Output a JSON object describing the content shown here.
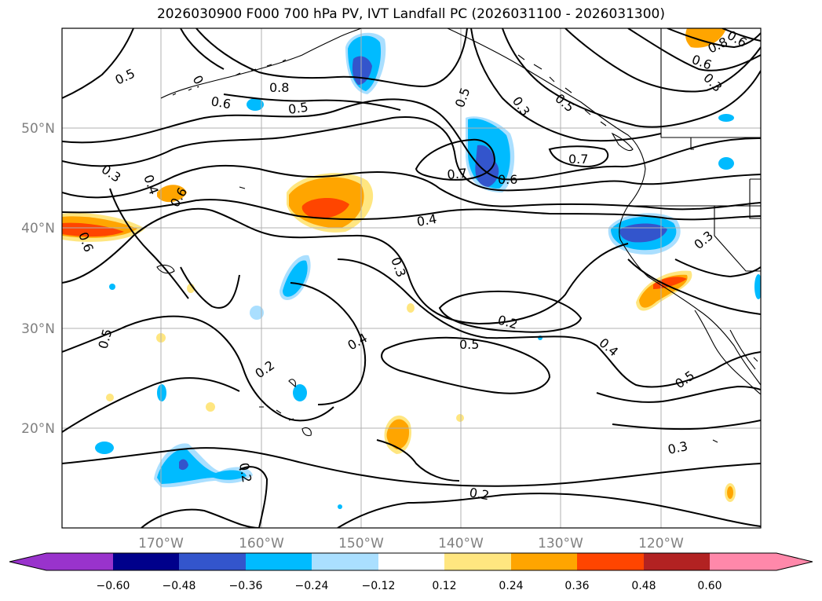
{
  "title": "2026030900 F000 700 hPa PV, IVT Landfall PC (2026031100 - 2026031300)",
  "latitude_labels": [
    "50°N",
    "40°N",
    "30°N",
    "20°N"
  ],
  "longitude_labels": [
    "170°W",
    "160°W",
    "150°W",
    "140°W",
    "130°W",
    "120°W"
  ],
  "contour_labels": [
    "0.5",
    "0.",
    "0.8",
    "0.6",
    "0.5",
    "0.5",
    "0.3",
    "0.3",
    "0.4",
    "0.6",
    "0.6",
    "0.7",
    "0.6",
    "0.7",
    "0.4",
    "0.3",
    "0.2",
    "0.5",
    "0.4",
    "0.4",
    "0.2",
    "0.5",
    "0.3",
    "0.2",
    "0.5",
    "0.3",
    "0.8",
    "0.6",
    "0.3",
    "0.6",
    "0.5",
    "0.2"
  ],
  "colorbar": {
    "tick_labels": [
      "−0.60",
      "−0.48",
      "−0.36",
      "−0.24",
      "−0.12",
      "0.12",
      "0.24",
      "0.36",
      "0.48",
      "0.60"
    ],
    "bins": [
      "#9933cc",
      "#00008b",
      "#3355cc",
      "#00bbff",
      "#aadfff",
      "#ffffff",
      "#ffe680",
      "#ffa500",
      "#ff4500",
      "#b22222",
      "#ff88aa"
    ]
  },
  "colors": {
    "neg_deep": "#3355cc",
    "neg_mid": "#00bbff",
    "neg_light": "#aadfff",
    "pos_light": "#ffe680",
    "pos_mid": "#ffa500",
    "pos_deep": "#ff4500",
    "grid": "#b0b0b0"
  }
}
